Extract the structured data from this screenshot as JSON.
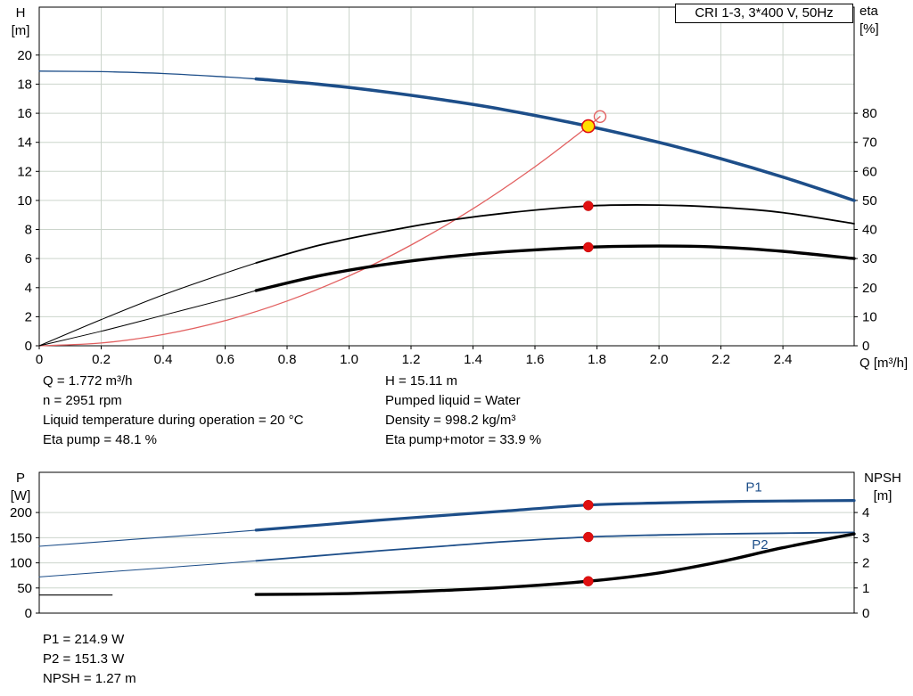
{
  "title_box": "CRI 1-3, 3*400 V, 50Hz",
  "colors": {
    "pump_blue": "#1d4e89",
    "red": "#e01010",
    "red_dark": "#c00000",
    "system_red": "#e26060",
    "yellow": "#ffe000",
    "grid": "#ccd5cc",
    "black": "#000000"
  },
  "info_top_left": [
    "Q = 1.772 m³/h",
    "n = 2951 rpm",
    "Liquid temperature during operation = 20 °C",
    "Eta pump = 48.1 %"
  ],
  "info_top_right": [
    "H = 15.11 m",
    "Pumped liquid = Water",
    "Density = 998.2 kg/m³",
    "Eta pump+motor = 33.9 %"
  ],
  "info_bottom": [
    "P1 = 214.9 W",
    "P2 = 151.3 W",
    "NPSH = 1.27 m"
  ],
  "chart_data": [
    {
      "type": "line",
      "name": "pump-performance",
      "title": "CRI 1-3, 3*400 V, 50Hz",
      "x_axis": {
        "label": "Q [m³/h]",
        "min": 0,
        "max": 2.63,
        "ticks": [
          0,
          0.2,
          0.4,
          0.6,
          0.8,
          1.0,
          1.2,
          1.4,
          1.6,
          1.8,
          2.0,
          2.2,
          2.4
        ],
        "tick_labels": [
          "0",
          "0.2",
          "0.4",
          "0.6",
          "0.8",
          "1.0",
          "1.2",
          "1.4",
          "1.6",
          "1.8",
          "2.0",
          "2.2",
          "2.4"
        ],
        "show_labels": true,
        "grid": true
      },
      "y_left": {
        "label_lines": [
          "H",
          "[m]"
        ],
        "min": 0,
        "max": 23.3,
        "ticks": [
          0,
          2,
          4,
          6,
          8,
          10,
          12,
          14,
          16,
          18,
          20
        ]
      },
      "y_right": {
        "label_lines": [
          "eta",
          "[%]"
        ],
        "min": 0,
        "max": 116.5,
        "ticks": [
          0,
          10,
          20,
          30,
          40,
          50,
          60,
          70,
          80
        ]
      },
      "series": [
        {
          "name": "pump-curve",
          "axis": "left",
          "color": "#1d4e89",
          "width": 3.6,
          "width_thin": 1.3,
          "thick_from": 0.7,
          "x": [
            0,
            0.2,
            0.4,
            0.6,
            0.7,
            0.9,
            1.1,
            1.3,
            1.5,
            1.772,
            2.0,
            2.2,
            2.4,
            2.63
          ],
          "y": [
            18.9,
            18.86,
            18.73,
            18.5,
            18.36,
            18.0,
            17.51,
            16.93,
            16.24,
            15.11,
            13.99,
            12.87,
            11.61,
            10.0
          ]
        },
        {
          "name": "system-curve",
          "axis": "left",
          "color": "#e26060",
          "width": 1.3,
          "width_thin": 1.3,
          "thick_from": null,
          "x": [
            0,
            0.2,
            0.4,
            0.6,
            0.8,
            1.0,
            1.2,
            1.4,
            1.6,
            1.772,
            1.81
          ],
          "y": [
            0,
            0.19,
            0.77,
            1.73,
            3.08,
            4.81,
            6.93,
            9.43,
            12.32,
            15.11,
            15.77
          ]
        },
        {
          "name": "eta-pump-curve",
          "axis": "right",
          "color": "#000000",
          "width": 1.8,
          "width_thin": 1.0,
          "thick_from": 0.7,
          "x": [
            0,
            0.2,
            0.4,
            0.6,
            0.7,
            0.9,
            1.1,
            1.3,
            1.5,
            1.772,
            2.0,
            2.2,
            2.4,
            2.63
          ],
          "y": [
            0,
            9,
            17.5,
            25,
            28.5,
            34.5,
            39,
            42.8,
            45.6,
            48.1,
            48.4,
            47.6,
            45.8,
            42
          ]
        },
        {
          "name": "eta-pump-motor-curve",
          "axis": "right",
          "color": "#000000",
          "width": 3.4,
          "width_thin": 1.0,
          "thick_from": 0.7,
          "x": [
            0,
            0.2,
            0.4,
            0.6,
            0.7,
            0.9,
            1.1,
            1.3,
            1.5,
            1.772,
            2.0,
            2.2,
            2.4,
            2.63
          ],
          "y": [
            0,
            5,
            10.5,
            16,
            19,
            24,
            27.7,
            30.4,
            32.3,
            33.9,
            34.3,
            33.9,
            32.5,
            30
          ]
        }
      ],
      "markers": [
        {
          "name": "eta-pump-point",
          "type": "dot",
          "axis": "right",
          "x": 1.772,
          "y": 48.1
        },
        {
          "name": "eta-pump-motor-point",
          "type": "dot",
          "axis": "right",
          "x": 1.772,
          "y": 33.9
        },
        {
          "name": "alt-duty-point",
          "type": "open",
          "axis": "left",
          "x": 1.81,
          "y": 15.77
        },
        {
          "name": "duty-point",
          "type": "duty",
          "axis": "left",
          "x": 1.772,
          "y": 15.11
        }
      ]
    },
    {
      "type": "line",
      "name": "power-npsh",
      "x_axis": {
        "label": "",
        "min": 0,
        "max": 2.63,
        "ticks": [],
        "tick_labels": [],
        "show_labels": false,
        "grid": false
      },
      "y_left": {
        "label_lines": [
          "P",
          "[W]"
        ],
        "min": 0,
        "max": 280,
        "ticks": [
          0,
          50,
          100,
          150,
          200
        ]
      },
      "y_right": {
        "label_lines": [
          "NPSH",
          "[m]"
        ],
        "min": 0,
        "max": 5.6,
        "ticks": [
          0,
          1,
          2,
          3,
          4
        ]
      },
      "series": [
        {
          "name": "p1-curve",
          "axis": "left",
          "color": "#1d4e89",
          "width": 3.2,
          "width_thin": 1.1,
          "thick_from": 0.7,
          "label": "P1",
          "label_at": [
            2.28,
            242
          ],
          "x": [
            0,
            0.2,
            0.4,
            0.6,
            0.7,
            0.9,
            1.1,
            1.3,
            1.5,
            1.772,
            2.0,
            2.2,
            2.4,
            2.63
          ],
          "y": [
            133,
            142,
            151,
            160,
            165,
            175,
            185,
            194,
            203,
            214.9,
            219,
            221.5,
            223,
            224
          ]
        },
        {
          "name": "p2-curve",
          "axis": "left",
          "color": "#1d4e89",
          "width": 1.8,
          "width_thin": 1.0,
          "thick_from": 0.7,
          "label": "P2",
          "label_at": [
            2.3,
            128
          ],
          "x": [
            0,
            0.2,
            0.4,
            0.6,
            0.7,
            0.9,
            1.1,
            1.3,
            1.5,
            1.772,
            2.0,
            2.2,
            2.4,
            2.63
          ],
          "y": [
            72,
            81,
            90,
            99,
            104,
            114,
            124,
            133,
            142,
            151.3,
            155.5,
            157.5,
            159,
            160.5
          ]
        },
        {
          "name": "npsh-curve",
          "axis": "right",
          "color": "#000000",
          "width": 3.4,
          "width_thin": 1.1,
          "thick_from": null,
          "x": [
            0.7,
            0.9,
            1.1,
            1.3,
            1.5,
            1.772,
            2.0,
            2.2,
            2.4,
            2.63
          ],
          "y": [
            0.74,
            0.76,
            0.81,
            0.9,
            1.02,
            1.27,
            1.6,
            2.05,
            2.6,
            3.15
          ]
        },
        {
          "name": "npsh-low-curve",
          "axis": "right",
          "color": "#000000",
          "width": 1.2,
          "width_thin": 1.2,
          "thick_from": null,
          "x": [
            0,
            0.235
          ],
          "y": [
            0.72,
            0.72
          ]
        }
      ],
      "markers": [
        {
          "name": "p1-point",
          "type": "dot",
          "axis": "left",
          "x": 1.772,
          "y": 214.9
        },
        {
          "name": "p2-point",
          "type": "dot",
          "axis": "left",
          "x": 1.772,
          "y": 151.3
        },
        {
          "name": "npsh-point",
          "type": "dot",
          "axis": "right",
          "x": 1.772,
          "y": 1.27
        }
      ]
    }
  ]
}
